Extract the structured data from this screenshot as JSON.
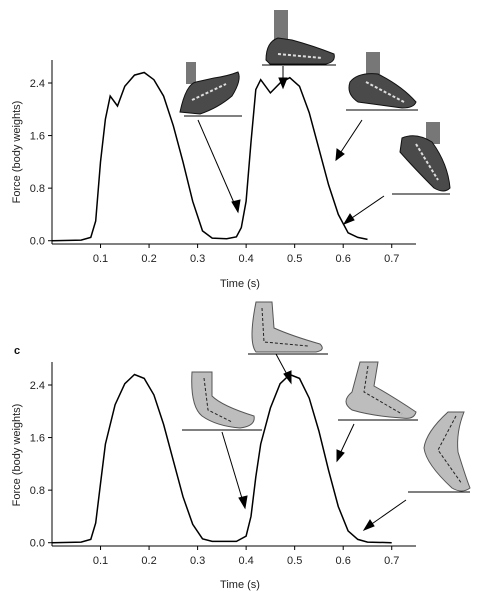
{
  "chart_data": [
    {
      "type": "line",
      "panel_label": "",
      "xlabel": "Time (s)",
      "ylabel": "Force (body weights)",
      "xlim": [
        0.0,
        0.75
      ],
      "ylim": [
        -0.05,
        2.75
      ],
      "xticks": [
        "0.1",
        "0.2",
        "0.3",
        "0.4",
        "0.5",
        "0.6",
        "0.7"
      ],
      "yticks": [
        "0.0",
        "0.8",
        "1.6",
        "2.4"
      ],
      "grid": false,
      "series": [
        {
          "points": [
            [
              0.0,
              0.0
            ],
            [
              0.06,
              0.01
            ],
            [
              0.08,
              0.05
            ],
            [
              0.09,
              0.3
            ],
            [
              0.1,
              1.2
            ],
            [
              0.11,
              1.85
            ],
            [
              0.12,
              2.2
            ],
            [
              0.135,
              2.05
            ],
            [
              0.15,
              2.35
            ],
            [
              0.17,
              2.52
            ],
            [
              0.19,
              2.56
            ],
            [
              0.21,
              2.45
            ],
            [
              0.23,
              2.2
            ],
            [
              0.25,
              1.75
            ],
            [
              0.27,
              1.2
            ],
            [
              0.29,
              0.6
            ],
            [
              0.31,
              0.15
            ],
            [
              0.33,
              0.04
            ],
            [
              0.36,
              0.03
            ],
            [
              0.38,
              0.06
            ],
            [
              0.39,
              0.2
            ],
            [
              0.4,
              0.6
            ],
            [
              0.41,
              1.5
            ],
            [
              0.42,
              2.3
            ],
            [
              0.43,
              2.45
            ],
            [
              0.45,
              2.25
            ],
            [
              0.47,
              2.4
            ],
            [
              0.49,
              2.48
            ],
            [
              0.51,
              2.35
            ],
            [
              0.53,
              1.95
            ],
            [
              0.55,
              1.4
            ],
            [
              0.57,
              0.85
            ],
            [
              0.59,
              0.4
            ],
            [
              0.61,
              0.12
            ],
            [
              0.63,
              0.05
            ],
            [
              0.65,
              0.02
            ]
          ]
        }
      ],
      "insets": [
        {
          "icon": "shod-heel-strike-photo"
        },
        {
          "icon": "shod-midstance-photo"
        },
        {
          "icon": "shod-heel-off-photo"
        },
        {
          "icon": "shod-toe-off-photo"
        }
      ]
    },
    {
      "type": "line",
      "panel_label": "c",
      "xlabel": "Time (s)",
      "ylabel": "Force (body weights)",
      "xlim": [
        0.0,
        0.75
      ],
      "ylim": [
        -0.05,
        2.75
      ],
      "xticks": [
        "0.1",
        "0.2",
        "0.3",
        "0.4",
        "0.5",
        "0.6",
        "0.7"
      ],
      "yticks": [
        "0.0",
        "0.8",
        "1.6",
        "2.4"
      ],
      "grid": false,
      "series": [
        {
          "points": [
            [
              0.0,
              0.0
            ],
            [
              0.06,
              0.01
            ],
            [
              0.08,
              0.05
            ],
            [
              0.09,
              0.3
            ],
            [
              0.1,
              0.9
            ],
            [
              0.11,
              1.5
            ],
            [
              0.13,
              2.1
            ],
            [
              0.15,
              2.42
            ],
            [
              0.17,
              2.56
            ],
            [
              0.19,
              2.5
            ],
            [
              0.21,
              2.25
            ],
            [
              0.23,
              1.8
            ],
            [
              0.25,
              1.25
            ],
            [
              0.27,
              0.7
            ],
            [
              0.29,
              0.28
            ],
            [
              0.31,
              0.06
            ],
            [
              0.33,
              0.02
            ],
            [
              0.38,
              0.02
            ],
            [
              0.4,
              0.1
            ],
            [
              0.41,
              0.4
            ],
            [
              0.42,
              1.0
            ],
            [
              0.43,
              1.5
            ],
            [
              0.45,
              2.05
            ],
            [
              0.47,
              2.42
            ],
            [
              0.49,
              2.56
            ],
            [
              0.51,
              2.5
            ],
            [
              0.53,
              2.2
            ],
            [
              0.55,
              1.7
            ],
            [
              0.57,
              1.1
            ],
            [
              0.59,
              0.55
            ],
            [
              0.61,
              0.18
            ],
            [
              0.63,
              0.05
            ],
            [
              0.65,
              0.01
            ],
            [
              0.7,
              0.0
            ]
          ]
        }
      ],
      "insets": [
        {
          "icon": "barefoot-forefoot-strike-photo"
        },
        {
          "icon": "barefoot-midstance-photo"
        },
        {
          "icon": "barefoot-heel-off-photo"
        },
        {
          "icon": "barefoot-toe-off-photo"
        }
      ]
    }
  ]
}
